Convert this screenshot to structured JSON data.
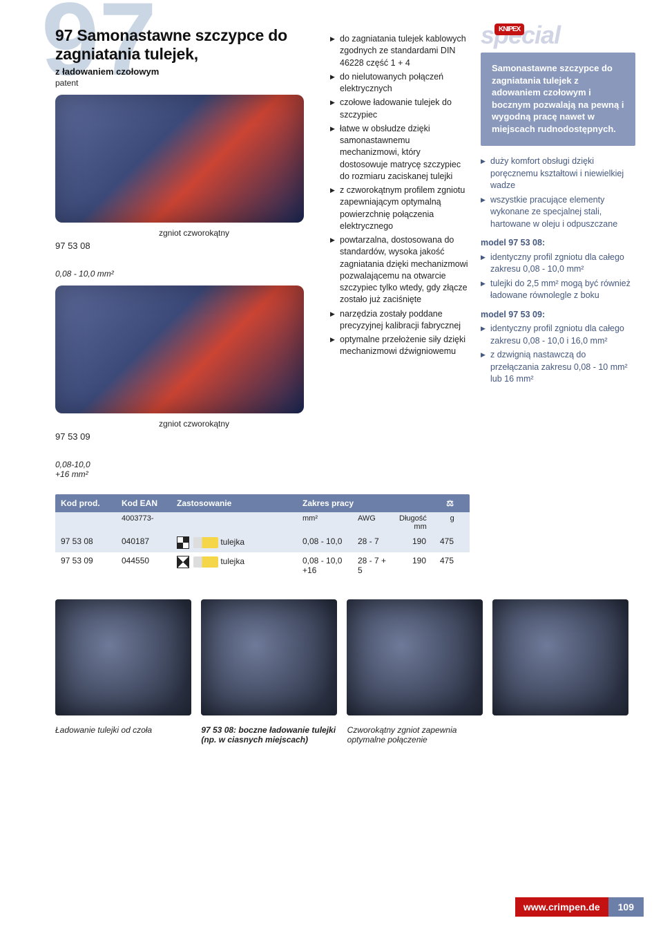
{
  "background_number": "97",
  "heading": {
    "number": "97",
    "title": "Samonastawne szczypce do zagniatania tulejek,",
    "subtitle": "z ładowaniem czołowym",
    "patent": "patent"
  },
  "tools": [
    {
      "model": "97 53 08",
      "shape": "zgniot czworokątny",
      "range": "0,08 - 10,0 mm²"
    },
    {
      "model": "97 53 09",
      "shape": "zgniot czworokątny",
      "range": "0,08-10,0\n+16 mm²"
    }
  ],
  "mid_bullets": [
    "do zagniatania tulejek kablowych zgodnych ze standardami DIN 46228 część 1 + 4",
    "do nielutowanych połączeń elektrycznych",
    "czołowe ładowanie tulejek do szczypiec",
    "łatwe w obsłudze dzięki samonastawnemu mechanizmowi, który dostosowuje matrycę szczypiec do rozmiaru zaciskanej tulejki",
    "z czworokątnym profilem zgniotu zapewniającym optymalną powierzchnię połączenia elektrycznego",
    "powtarzalna, dostosowana do standardów, wysoka jakość zagniatania dzięki mechanizmowi pozwalającemu na otwarcie szczypiec tylko wtedy, gdy złącze zostało już zaciśnięte",
    "narzędzia zostały poddane precyzyjnej kalibracji fabrycznej",
    "optymalne przełożenie siły dzięki mechanizmowi dźwigniowemu"
  ],
  "special": {
    "logo_text": "special",
    "badge": "KNIPEX"
  },
  "right_box": "Samonastawne szczypce do zagniatania tulejek z adowaniem czołowym i bocznym pozwalają na pewną i wygodną pracę nawet w miejscach rudnodostępnych.",
  "right_bullets_a": [
    "duży komfort obsługi dzięki poręcznemu kształtowi i niewielkiej wadze",
    "wszystkie pracujące elementy wykonane ze specjalnej stali, hartowane w oleju i odpuszczane"
  ],
  "right_model_1": {
    "head": "model 97 53 08:",
    "items": [
      "identyczny profil zgniotu dla całego zakresu 0,08 - 10,0 mm²",
      "tulejki do 2,5 mm² mogą być również ładowane równolegle z boku"
    ]
  },
  "right_model_2": {
    "head": "model 97 53 09:",
    "items": [
      "identyczny profil zgniotu dla całego zakresu 0,08 - 10,0 i 16,0 mm²",
      "z dzwignią nastawczą do przełączania zakresu 0,08 - 10 mm² lub 16 mm²"
    ]
  },
  "table": {
    "head": {
      "c1": "Kod prod.",
      "c2": "Kod EAN",
      "c3": "Zastosowanie",
      "c4": "Zakres pracy",
      "c5": "",
      "c6": "⚖"
    },
    "sub": {
      "c2": "4003773-",
      "c4": "mm²",
      "c4b": "AWG",
      "c5": "Długość\nmm",
      "c6": "g"
    },
    "rows": [
      {
        "c1": "97 53 08",
        "c2": "040187",
        "c3": "tulejka",
        "c4": "0,08 - 10,0",
        "c4b": "28 - 7",
        "c5": "190",
        "c6": "475",
        "ferrule_color": "#f5d649"
      },
      {
        "c1": "97 53 09",
        "c2": "044550",
        "c3": "tulejka",
        "c4": "0,08 - 10,0 +16",
        "c4b": "28 - 7 + 5",
        "c5": "190",
        "c6": "475",
        "ferrule_color": "#f5d649"
      }
    ]
  },
  "captions": [
    "Ładowanie tulejki od czoła",
    "97 53 08: boczne ładowanie tulejki (np. w ciasnych miejscach)",
    "Czworokątny zgniot zapewnia optymalne połączenie"
  ],
  "footer": {
    "url": "www.crimpen.de",
    "page": "109"
  },
  "colors": {
    "header_blue": "#6b7fa8",
    "row_blue": "#e3e9f2",
    "right_box": "#8998bb",
    "right_text": "#45587f",
    "accent_red": "#c41212",
    "bignum": "#cad6e3"
  }
}
